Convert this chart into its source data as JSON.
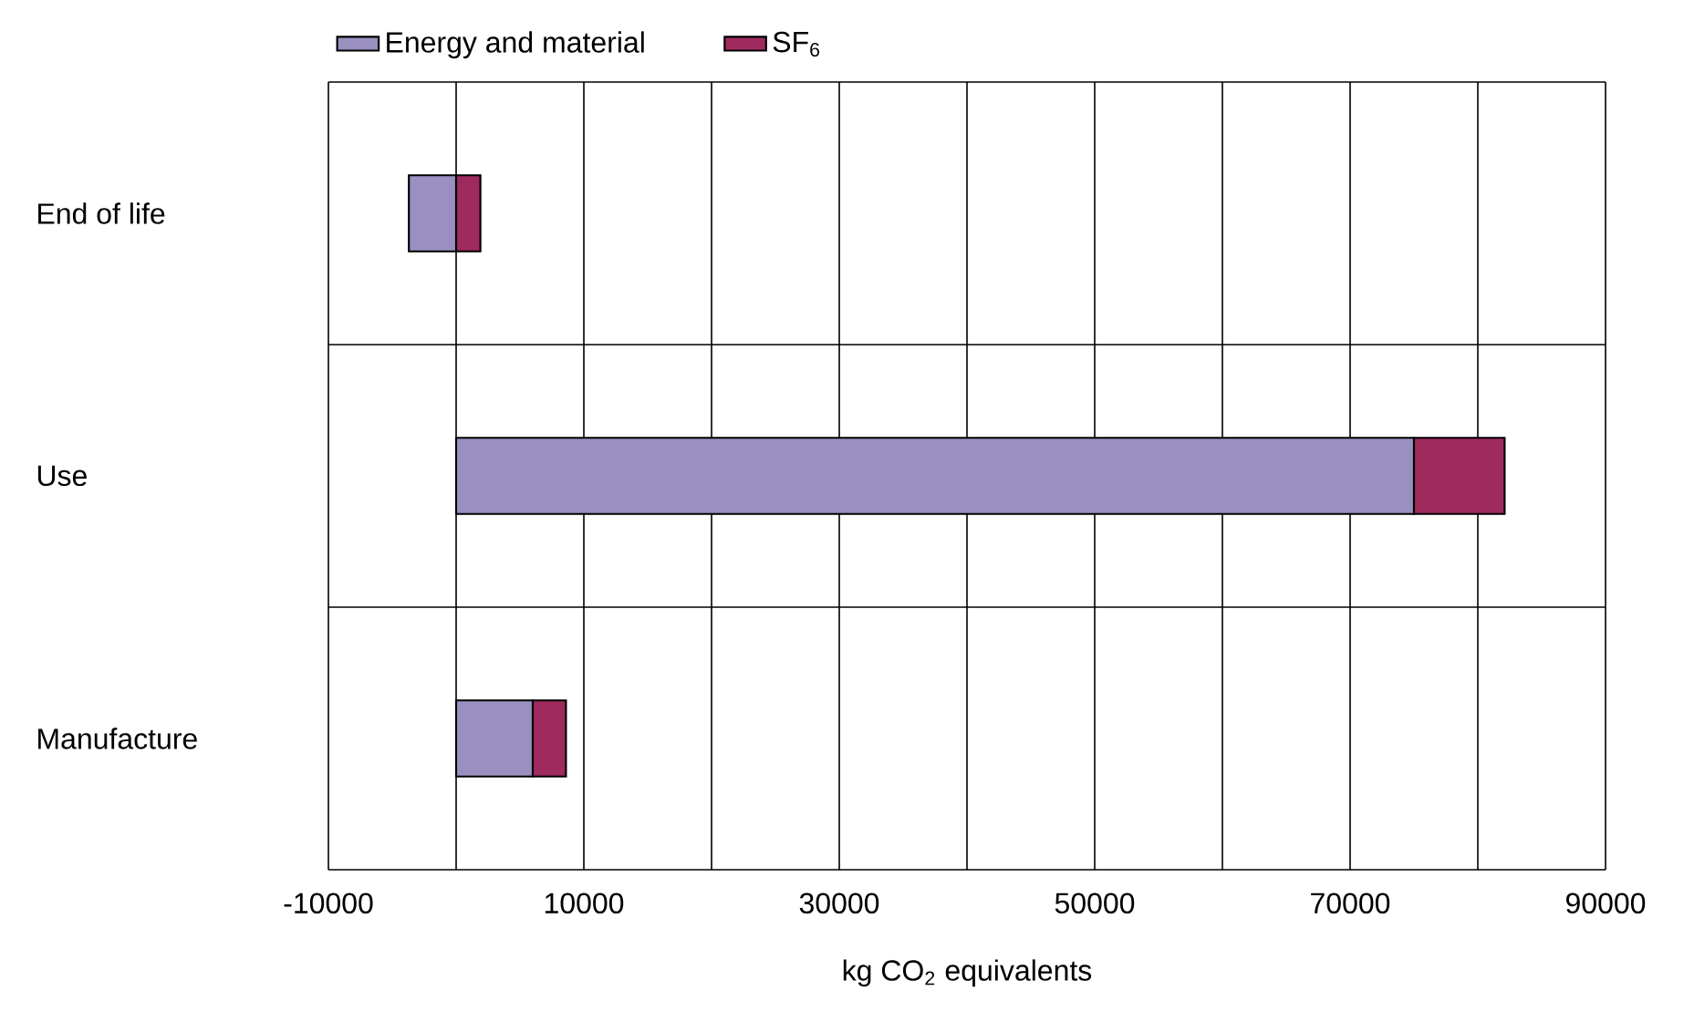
{
  "chart_data": {
    "type": "bar",
    "orientation": "horizontal",
    "stacked": true,
    "xlabel": "kg CO$_{2}$ equivalents",
    "categories": [
      "End of life",
      "Use",
      "Manufacture"
    ],
    "series": [
      {
        "name": "Energy and material",
        "color": "#9a90c0",
        "values": [
          -3700,
          75000,
          6000
        ]
      },
      {
        "name": "SF$_{6}$",
        "color": "#9e2a5e",
        "values": [
          1900,
          7100,
          2600
        ]
      }
    ],
    "xlim": [
      -10000,
      90000
    ],
    "xticks": [
      -10000,
      {
        "value": 0,
        "label": null
      },
      10000,
      {
        "value": 20000,
        "label": null
      },
      30000,
      {
        "value": 40000,
        "label": null
      },
      50000,
      {
        "value": 60000,
        "label": null
      },
      70000,
      {
        "value": 80000,
        "label": null
      },
      90000
    ],
    "grid": true,
    "legend": "top"
  }
}
